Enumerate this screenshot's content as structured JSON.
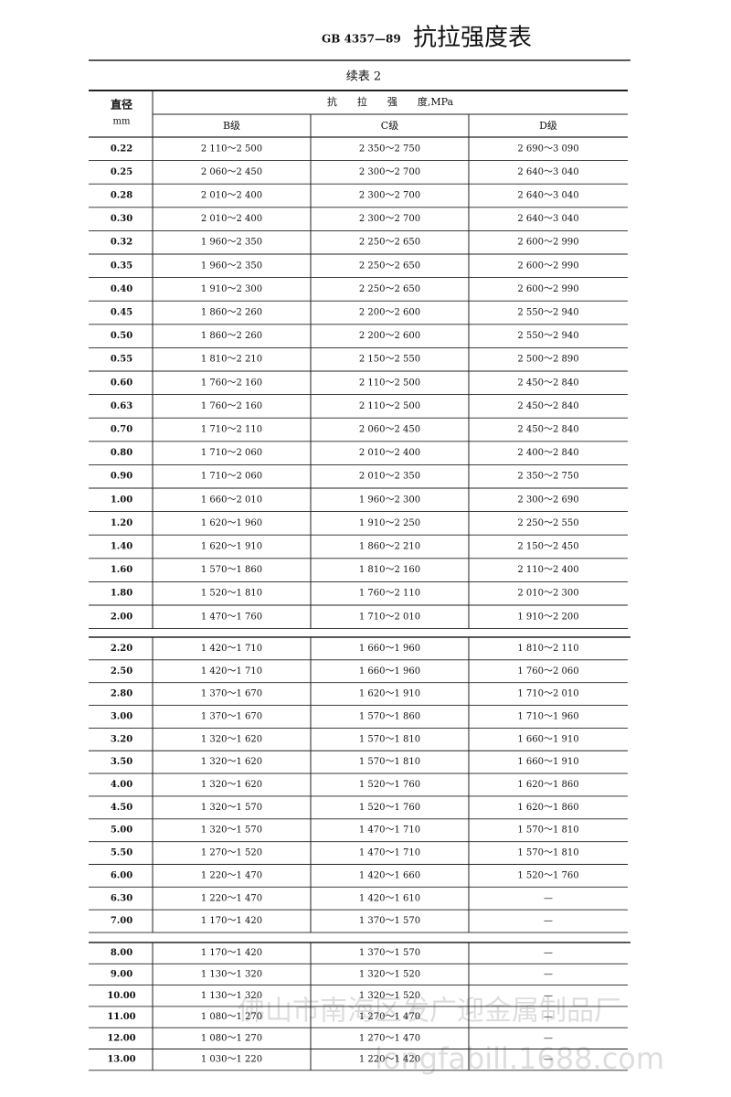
{
  "header": {
    "code": "GB 4357—89",
    "title": "抗拉强度表"
  },
  "subtitle": "续表 2",
  "table": {
    "columns": {
      "diameter": "直径",
      "unit": "mm",
      "strength": "抗　　拉　　强　　度,MPa",
      "grades": [
        "B级",
        "C级",
        "D级"
      ]
    },
    "sections": [
      [
        [
          "0.22",
          "2 110～2 500",
          "2 350～2 750",
          "2 690～3 090"
        ],
        [
          "0.25",
          "2 060～2 450",
          "2 300～2 700",
          "2 640～3 040"
        ],
        [
          "0.28",
          "2 010～2 400",
          "2 300～2 700",
          "2 640～3 040"
        ],
        [
          "0.30",
          "2 010～2 400",
          "2 300～2 700",
          "2 640～3 040"
        ],
        [
          "0.32",
          "1 960～2 350",
          "2 250～2 650",
          "2 600～2 990"
        ],
        [
          "0.35",
          "1 960～2 350",
          "2 250～2 650",
          "2 600～2 990"
        ],
        [
          "0.40",
          "1 910～2 300",
          "2 250～2 650",
          "2 600～2 990"
        ],
        [
          "0.45",
          "1 860～2 260",
          "2 200～2 600",
          "2 550～2 940"
        ],
        [
          "0.50",
          "1 860～2 260",
          "2 200～2 600",
          "2 550～2 940"
        ],
        [
          "0.55",
          "1 810～2 210",
          "2 150～2 550",
          "2 500～2 890"
        ],
        [
          "0.60",
          "1 760～2 160",
          "2 110～2 500",
          "2 450～2 840"
        ],
        [
          "0.63",
          "1 760～2 160",
          "2 110～2 500",
          "2 450～2 840"
        ],
        [
          "0.70",
          "1 710～2 110",
          "2 060～2 450",
          "2 450～2 840"
        ],
        [
          "0.80",
          "1 710～2 060",
          "2 010～2 400",
          "2 400～2 840"
        ],
        [
          "0.90",
          "1 710～2 060",
          "2 010～2 350",
          "2 350～2 750"
        ],
        [
          "1.00",
          "1 660～2 010",
          "1 960～2 300",
          "2 300～2 690"
        ],
        [
          "1.20",
          "1 620～1 960",
          "1 910～2 250",
          "2 250～2 550"
        ],
        [
          "1.40",
          "1 620～1 910",
          "1 860～2 210",
          "2 150～2 450"
        ],
        [
          "1.60",
          "1 570～1 860",
          "1 810～2 160",
          "2 110～2 400"
        ],
        [
          "1.80",
          "1 520～1 810",
          "1 760～2 110",
          "2 010～2 300"
        ],
        [
          "2.00",
          "1 470～1 760",
          "1 710～2 010",
          "1 910～2 200"
        ]
      ],
      [
        [
          "2.20",
          "1 420～1 710",
          "1 660～1 960",
          "1 810～2 110"
        ],
        [
          "2.50",
          "1 420～1 710",
          "1 660～1 960",
          "1 760～2 060"
        ],
        [
          "2.80",
          "1 370～1 670",
          "1 620～1 910",
          "1 710～2 010"
        ],
        [
          "3.00",
          "1 370～1 670",
          "1 570～1 860",
          "1 710～1 960"
        ],
        [
          "3.20",
          "1 320～1 620",
          "1 570～1 810",
          "1 660～1 910"
        ],
        [
          "3.50",
          "1 320～1 620",
          "1 570～1 810",
          "1 660～1 910"
        ],
        [
          "4.00",
          "1 320～1 620",
          "1 520～1 760",
          "1 620～1 860"
        ],
        [
          "4.50",
          "1 320～1 570",
          "1 520～1 760",
          "1 620～1 860"
        ],
        [
          "5.00",
          "1 320～1 570",
          "1 470～1 710",
          "1 570～1 810"
        ],
        [
          "5.50",
          "1 270～1 520",
          "1 470～1 710",
          "1 570～1 810"
        ],
        [
          "6.00",
          "1 220～1 470",
          "1 420～1 660",
          "1 520～1 760"
        ],
        [
          "6.30",
          "1 220～1 470",
          "1 420～1 610",
          "—"
        ],
        [
          "7.00",
          "1 170～1 420",
          "1 370～1 570",
          "—"
        ]
      ],
      [
        [
          "8.00",
          "1 170～1 420",
          "1 370～1 570",
          "—"
        ],
        [
          "9.00",
          "1 130～1 320",
          "1 320～1 520",
          "—"
        ],
        [
          "10.00",
          "1 130～1 320",
          "1 320～1 520",
          "—"
        ],
        [
          "11.00",
          "1 080～1 270",
          "1 270～1 470",
          "—"
        ],
        [
          "12.00",
          "1 080～1 270",
          "1 270～1 470",
          "—"
        ],
        [
          "13.00",
          "1 030～1 220",
          "1 220～1 420",
          "—"
        ]
      ]
    ]
  },
  "watermark": [
    "佛山市南海区发广迎金属制品厂",
    "longfabill.1688.com"
  ]
}
